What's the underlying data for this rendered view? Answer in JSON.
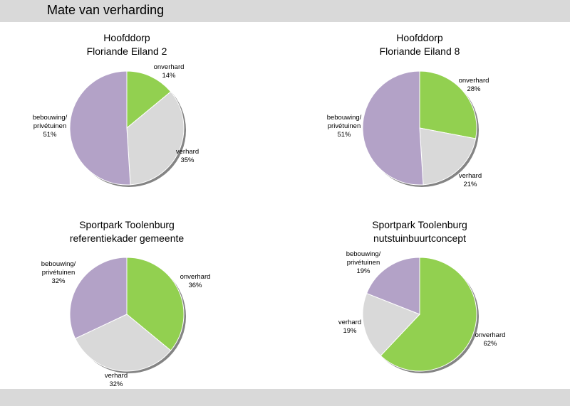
{
  "page": {
    "title": "Mate van verharding"
  },
  "colors": {
    "onverhard": "#92d050",
    "verhard": "#d9d9d9",
    "bebouwing": "#b3a2c7",
    "edge": "#ffffff"
  },
  "chart_data": [
    {
      "type": "pie",
      "title": [
        "Hoofddorp",
        "Floriande Eiland 2"
      ],
      "slices": [
        {
          "key": "onverhard",
          "label": [
            "onverhard"
          ],
          "pct": "14%",
          "value": 14
        },
        {
          "key": "verhard",
          "label": [
            "verhard"
          ],
          "pct": "35%",
          "value": 35
        },
        {
          "key": "bebouwing",
          "label": [
            "bebouwing/",
            "privétuinen"
          ],
          "pct": "51%",
          "value": 51
        }
      ]
    },
    {
      "type": "pie",
      "title": [
        "Hoofddorp",
        "Floriande Eiland 8"
      ],
      "slices": [
        {
          "key": "onverhard",
          "label": [
            "onverhard"
          ],
          "pct": "28%",
          "value": 28
        },
        {
          "key": "verhard",
          "label": [
            "verhard"
          ],
          "pct": "21%",
          "value": 21
        },
        {
          "key": "bebouwing",
          "label": [
            "bebouwing/",
            "privétuinen"
          ],
          "pct": "51%",
          "value": 51
        }
      ]
    },
    {
      "type": "pie",
      "title": [
        "Sportpark Toolenburg",
        "referentiekader gemeente"
      ],
      "slices": [
        {
          "key": "onverhard",
          "label": [
            "onverhard"
          ],
          "pct": "36%",
          "value": 36
        },
        {
          "key": "verhard",
          "label": [
            "verhard"
          ],
          "pct": "32%",
          "value": 32
        },
        {
          "key": "bebouwing",
          "label": [
            "bebouwing/",
            "privétuinen"
          ],
          "pct": "32%",
          "value": 32
        }
      ]
    },
    {
      "type": "pie",
      "title": [
        "Sportpark Toolenburg",
        "nutstuinbuurtconcept"
      ],
      "slices": [
        {
          "key": "onverhard",
          "label": [
            "onverhard"
          ],
          "pct": "62%",
          "value": 62
        },
        {
          "key": "verhard",
          "label": [
            "verhard"
          ],
          "pct": "19%",
          "value": 19
        },
        {
          "key": "bebouwing",
          "label": [
            "bebouwing/",
            "privétuinen"
          ],
          "pct": "19%",
          "value": 19
        }
      ]
    }
  ]
}
